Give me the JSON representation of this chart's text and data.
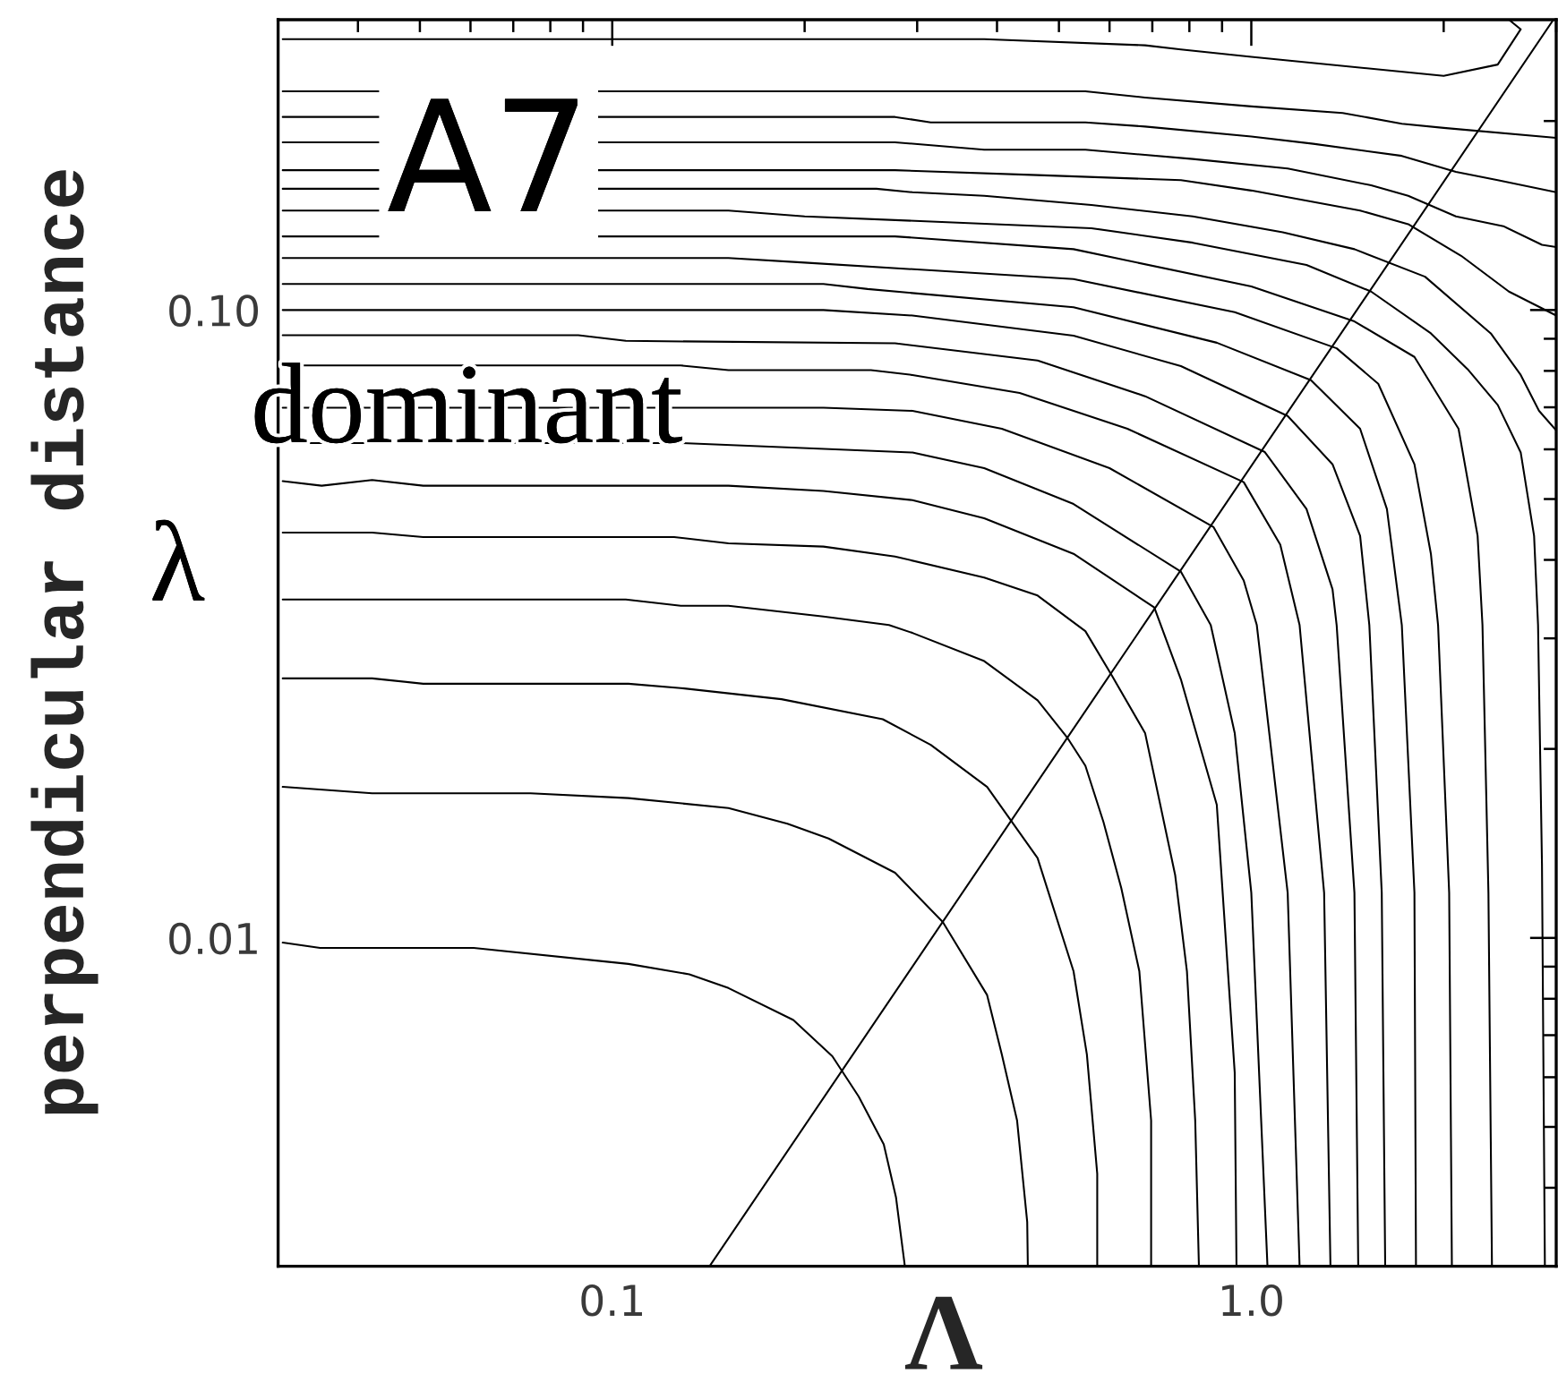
{
  "chart_data": {
    "type": "line",
    "xlabel": "Λ",
    "ylabel": "perpendicular distance",
    "annotations": [
      "A7",
      "dominant",
      "λ"
    ],
    "log": "xy",
    "xlim": [
      0.03,
      3
    ],
    "ylim": [
      0.003,
      0.29
    ],
    "xticks": [
      0.1,
      {
        "value": 1,
        "label": "1.0"
      }
    ],
    "yticks": [
      0.01,
      {
        "value": 0.1,
        "label": "0.10"
      }
    ],
    "series": [
      {
        "color": "#000000",
        "x": [
          0.142,
          2.97
        ],
        "values": [
          0.003,
          0.29
        ]
      },
      {
        "color": "#000000",
        "x": [
          0.0305,
          0.277,
          0.382,
          0.682,
          0.776,
          1.0,
          2.0,
          2.43,
          2.64,
          2.53
        ],
        "values": [
          0.27,
          0.27,
          0.27,
          0.264,
          0.26,
          0.253,
          0.236,
          0.246,
          0.28,
          0.29
        ]
      },
      {
        "color": "#000000",
        "x": [
          0.0305,
          0.55,
          0.682,
          1.0,
          1.39,
          1.72,
          2.0,
          3
        ],
        "values": [
          0.223,
          0.223,
          0.218,
          0.211,
          0.206,
          0.198,
          0.195,
          0.188
        ]
      },
      {
        "color": "#000000",
        "x": [
          0.0305,
          0.277,
          0.315,
          0.55,
          0.682,
          1.0,
          1.25,
          1.72,
          2.09,
          2.43,
          3
        ],
        "values": [
          0.203,
          0.203,
          0.199,
          0.199,
          0.196,
          0.189,
          0.184,
          0.176,
          0.166,
          0.161,
          0.154
        ]
      },
      {
        "color": "#000000",
        "x": [
          0.0305,
          0.277,
          0.382,
          0.55,
          0.81,
          1.14,
          1.54,
          1.76,
          2.09,
          2.48,
          2.85,
          3
        ],
        "values": [
          0.185,
          0.185,
          0.18,
          0.18,
          0.174,
          0.168,
          0.158,
          0.152,
          0.141,
          0.136,
          0.127,
          0.126
        ]
      },
      {
        "color": "#000000",
        "x": [
          0.0305,
          0.277,
          0.463,
          0.776,
          1.0,
          1.48,
          1.76,
          2.13,
          2.53,
          3
        ],
        "values": [
          0.167,
          0.167,
          0.164,
          0.161,
          0.155,
          0.144,
          0.137,
          0.122,
          0.107,
          0.098
        ]
      },
      {
        "color": "#000000",
        "x": [
          0.0305,
          0.259,
          0.295,
          0.382,
          0.562,
          0.81,
          1.12,
          1.45,
          1.87,
          2.37,
          2.64,
          2.82,
          3
        ],
        "values": [
          0.156,
          0.156,
          0.154,
          0.152,
          0.147,
          0.141,
          0.133,
          0.125,
          0.113,
          0.0918,
          0.0788,
          0.0691,
          0.0643
        ]
      },
      {
        "color": "#000000",
        "x": [
          0.0305,
          0.152,
          0.2,
          0.562,
          0.81,
          1.22,
          1.54,
          1.91,
          2.18,
          2.43,
          2.64,
          2.77,
          2.81,
          2.85,
          2.88
        ],
        "values": [
          0.144,
          0.144,
          0.141,
          0.135,
          0.128,
          0.118,
          0.107,
          0.0918,
          0.0805,
          0.0706,
          0.0593,
          0.0437,
          0.0315,
          0.0131,
          0.003
        ]
      },
      {
        "color": "#000000",
        "x": [
          0.0305,
          0.277,
          0.527,
          1.0,
          1.45,
          1.8,
          2.11,
          2.26,
          2.3,
          2.35,
          2.38
        ],
        "values": [
          0.131,
          0.131,
          0.125,
          0.109,
          0.0959,
          0.0842,
          0.0647,
          0.0437,
          0.0315,
          0.0118,
          0.003
        ]
      },
      {
        "color": "#000000",
        "x": [
          0.0305,
          0.152,
          0.2,
          0.527,
          0.942,
          1.36,
          1.58,
          1.8,
          1.91,
          1.96,
          2.04,
          2.06
        ],
        "values": [
          0.121,
          0.121,
          0.119,
          0.112,
          0.0992,
          0.0869,
          0.0763,
          0.0568,
          0.0409,
          0.0315,
          0.0118,
          0.003
        ]
      },
      {
        "color": "#000000",
        "x": [
          0.0305,
          0.214,
          0.251,
          0.527,
          0.883,
          1.24,
          1.48,
          1.63,
          1.72,
          1.8,
          1.81
        ],
        "values": [
          0.11,
          0.11,
          0.108,
          0.101,
          0.0887,
          0.0773,
          0.0647,
          0.0482,
          0.0315,
          0.0118,
          0.003
        ]
      },
      {
        "color": "#000000",
        "x": [
          0.0305,
          0.214,
          0.295,
          0.527,
          0.776,
          1.14,
          1.34,
          1.48,
          1.53,
          1.6,
          1.62
        ],
        "values": [
          0.1,
          0.1,
          0.098,
          0.091,
          0.0814,
          0.0678,
          0.0568,
          0.0437,
          0.0315,
          0.0118,
          0.003
        ]
      },
      {
        "color": "#000000",
        "x": [
          0.0305,
          0.0885,
          0.105,
          0.277,
          0.463,
          0.682,
          1.05,
          1.22,
          1.34,
          1.36,
          1.45,
          1.47
        ],
        "values": [
          0.0912,
          0.0912,
          0.0893,
          0.0885,
          0.0831,
          0.0729,
          0.0594,
          0.0482,
          0.0359,
          0.0315,
          0.0118,
          0.003
        ]
      },
      {
        "color": "#000000",
        "x": [
          0.0305,
          0.128,
          0.152,
          0.254,
          0.295,
          0.434,
          0.64,
          0.973,
          1.11,
          1.19,
          1.3,
          1.33
        ],
        "values": [
          0.0816,
          0.0816,
          0.0802,
          0.0802,
          0.0788,
          0.0738,
          0.0647,
          0.0532,
          0.0423,
          0.0315,
          0.0118,
          0.003
        ]
      },
      {
        "color": "#000000",
        "x": [
          0.0305,
          0.214,
          0.295,
          0.407,
          0.6,
          0.873,
          0.973,
          1.02,
          1.14,
          1.19
        ],
        "values": [
          0.0699,
          0.0699,
          0.0691,
          0.0647,
          0.056,
          0.0451,
          0.0371,
          0.0315,
          0.0118,
          0.003
        ]
      },
      {
        "color": "#000000",
        "x": [
          0.0305,
          0.128,
          0.295,
          0.382,
          0.527,
          0.776,
          0.864,
          0.942,
          1.0,
          1.06
        ],
        "values": [
          0.0614,
          0.0614,
          0.0593,
          0.056,
          0.0491,
          0.0383,
          0.0315,
          0.0212,
          0.0118,
          0.003
        ]
      },
      {
        "color": "#000000",
        "x": [
          0.0305,
          0.0351,
          0.0421,
          0.0506,
          0.152,
          0.214,
          0.295,
          0.382,
          0.527,
          0.705,
          0.776,
          0.883,
          0.942,
          0.948
        ],
        "values": [
          0.0534,
          0.0525,
          0.0536,
          0.0525,
          0.0525,
          0.0515,
          0.0498,
          0.0466,
          0.0409,
          0.0336,
          0.0258,
          0.0163,
          0.0061,
          0.003
        ]
      },
      {
        "color": "#000000",
        "x": [
          0.0305,
          0.0421,
          0.0506,
          0.125,
          0.152,
          0.214,
          0.277,
          0.382,
          0.463,
          0.55,
          0.606,
          0.682,
          0.76,
          0.793,
          0.817,
          0.828
        ],
        "values": [
          0.0442,
          0.0442,
          0.0435,
          0.0435,
          0.0425,
          0.042,
          0.0405,
          0.0375,
          0.0351,
          0.0308,
          0.0261,
          0.0212,
          0.0126,
          0.00885,
          0.00512,
          0.003
        ]
      },
      {
        "color": "#000000",
        "x": [
          0.0305,
          0.105,
          0.128,
          0.152,
          0.214,
          0.271,
          0.295,
          0.382,
          0.463,
          0.516,
          0.55,
          0.587,
          0.626,
          0.668,
          0.697,
          0.697
        ],
        "values": [
          0.0346,
          0.0346,
          0.0338,
          0.0338,
          0.0325,
          0.0315,
          0.0306,
          0.0276,
          0.0239,
          0.0208,
          0.0188,
          0.0153,
          0.012,
          0.00885,
          0.00512,
          0.003
        ]
      },
      {
        "color": "#000000",
        "x": [
          0.0305,
          0.0421,
          0.0506,
          0.106,
          0.128,
          0.184,
          0.265,
          0.315,
          0.386,
          0.463,
          0.527,
          0.553,
          0.574,
          0.574
        ],
        "values": [
          0.0259,
          0.0259,
          0.0254,
          0.0254,
          0.025,
          0.024,
          0.0223,
          0.0203,
          0.0174,
          0.0134,
          0.00885,
          0.00652,
          0.00421,
          0.003
        ]
      },
      {
        "color": "#000000",
        "x": [
          0.0305,
          0.0421,
          0.0745,
          0.106,
          0.152,
          0.188,
          0.218,
          0.277,
          0.329,
          0.386,
          0.407,
          0.43,
          0.446,
          0.447
        ],
        "values": [
          0.0174,
          0.017,
          0.017,
          0.0167,
          0.0161,
          0.0152,
          0.0144,
          0.0127,
          0.0106,
          0.00811,
          0.00652,
          0.00512,
          0.00353,
          0.003
        ]
      },
      {
        "color": "#000000",
        "x": [
          0.0305,
          0.0349,
          0.0607,
          0.106,
          0.132,
          0.152,
          0.192,
          0.221,
          0.243,
          0.266,
          0.278,
          0.287
        ],
        "values": [
          0.00983,
          0.00964,
          0.00964,
          0.00909,
          0.00875,
          0.00832,
          0.0074,
          0.00648,
          0.00559,
          0.00469,
          0.00386,
          0.003
        ]
      }
    ]
  }
}
